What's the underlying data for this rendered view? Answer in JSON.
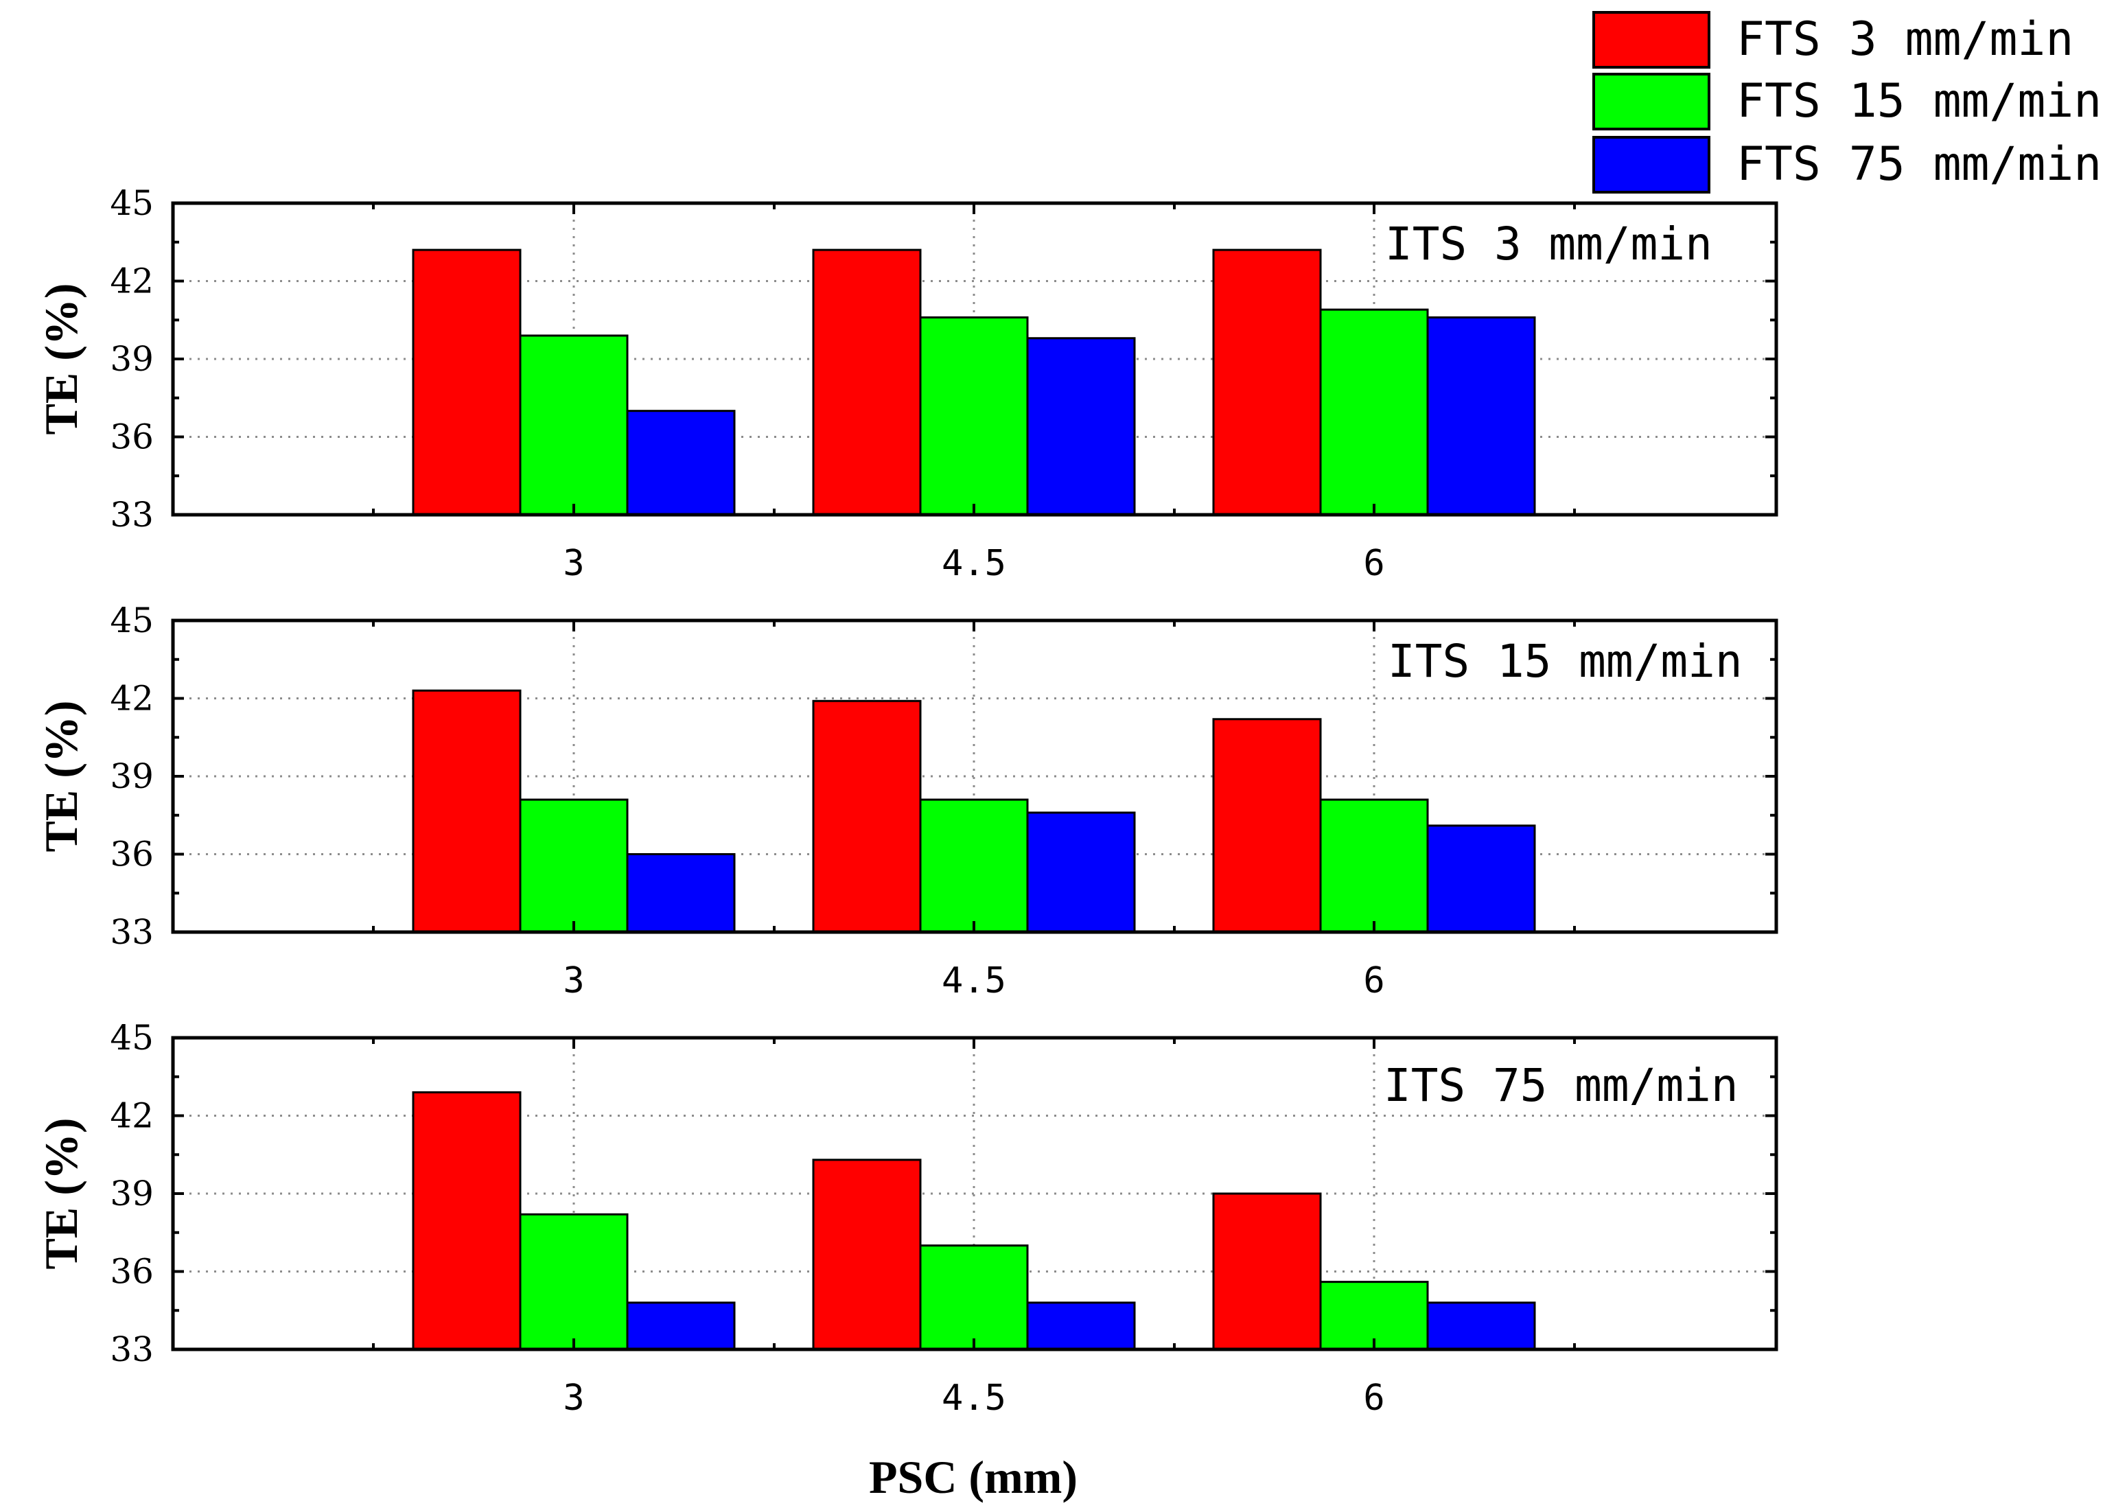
{
  "chart_data": {
    "type": "bar",
    "xlabel": "PSC (mm)",
    "ylabel": "TE (%)",
    "ylim": [
      33,
      45
    ],
    "yticks": [
      "33",
      "36",
      "39",
      "42",
      "45"
    ],
    "categories": [
      "3",
      "4.5",
      "6"
    ],
    "grid": true,
    "legend": {
      "position": "top-right",
      "entries": [
        {
          "name": "FTS 3  mm/min",
          "color": "#ff0000"
        },
        {
          "name": "FTS 15 mm/min",
          "color": "#00ff00"
        },
        {
          "name": "FTS 75 mm/min",
          "color": "#0000ff"
        }
      ]
    },
    "panels": [
      {
        "label": "ITS 3 mm/min",
        "series": [
          {
            "name": "FTS 3  mm/min",
            "values": [
              43.2,
              43.2,
              43.2
            ]
          },
          {
            "name": "FTS 15 mm/min",
            "values": [
              39.9,
              40.6,
              40.9
            ]
          },
          {
            "name": "FTS 75 mm/min",
            "values": [
              37.0,
              39.8,
              40.6
            ]
          }
        ]
      },
      {
        "label": "ITS 15 mm/min",
        "series": [
          {
            "name": "FTS 3  mm/min",
            "values": [
              42.3,
              41.9,
              41.2
            ]
          },
          {
            "name": "FTS 15 mm/min",
            "values": [
              38.1,
              38.1,
              38.1
            ]
          },
          {
            "name": "FTS 75 mm/min",
            "values": [
              36.0,
              37.6,
              37.1
            ]
          }
        ]
      },
      {
        "label": "ITS 75 mm/min",
        "series": [
          {
            "name": "FTS 3  mm/min",
            "values": [
              42.9,
              40.3,
              39.0
            ]
          },
          {
            "name": "FTS 15 mm/min",
            "values": [
              38.2,
              37.0,
              35.6
            ]
          },
          {
            "name": "FTS 75 mm/min",
            "values": [
              34.8,
              34.8,
              34.8
            ]
          }
        ]
      }
    ]
  }
}
